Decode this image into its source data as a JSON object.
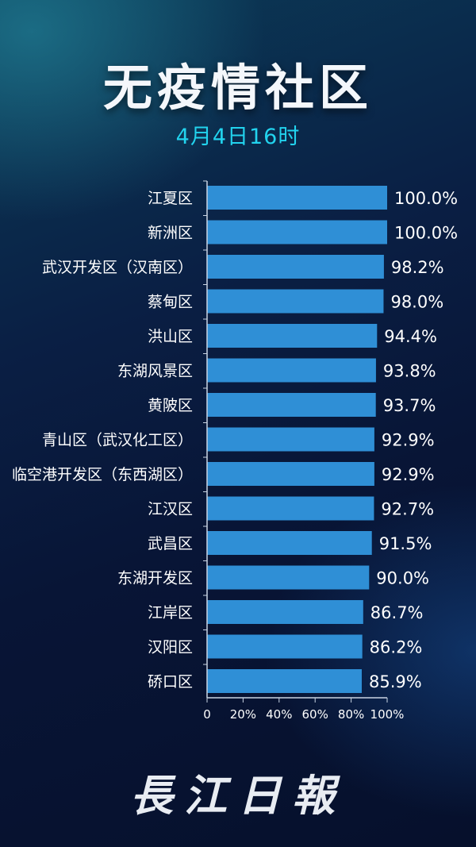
{
  "header": {
    "title": "无疫情社区",
    "subtitle": "4月4日16时"
  },
  "logo_text": "長江日報",
  "colors": {
    "bar": "#2f8fd6",
    "subtitle": "#22d3ee",
    "axis": "#c9d4e3"
  },
  "chart_data": {
    "type": "bar",
    "orientation": "horizontal",
    "categories": [
      "江夏区",
      "新洲区",
      "武汉开发区（汉南区）",
      "蔡甸区",
      "洪山区",
      "东湖风景区",
      "黄陂区",
      "青山区（武汉化工区）",
      "临空港开发区（东西湖区）",
      "江汉区",
      "武昌区",
      "东湖开发区",
      "江岸区",
      "汉阳区",
      "硚口区"
    ],
    "values": [
      100.0,
      100.0,
      98.2,
      98.0,
      94.4,
      93.8,
      93.7,
      92.9,
      92.9,
      92.7,
      91.5,
      90.0,
      86.7,
      86.2,
      85.9
    ],
    "value_labels": [
      "100.0%",
      "100.0%",
      "98.2%",
      "98.0%",
      "94.4%",
      "93.8%",
      "93.7%",
      "92.9%",
      "92.9%",
      "92.7%",
      "91.5%",
      "90.0%",
      "86.7%",
      "86.2%",
      "85.9%"
    ],
    "xlim": [
      0,
      100
    ],
    "x_ticks": [
      "0",
      "20%",
      "40%",
      "60%",
      "80%",
      "100%"
    ],
    "grid": false
  }
}
